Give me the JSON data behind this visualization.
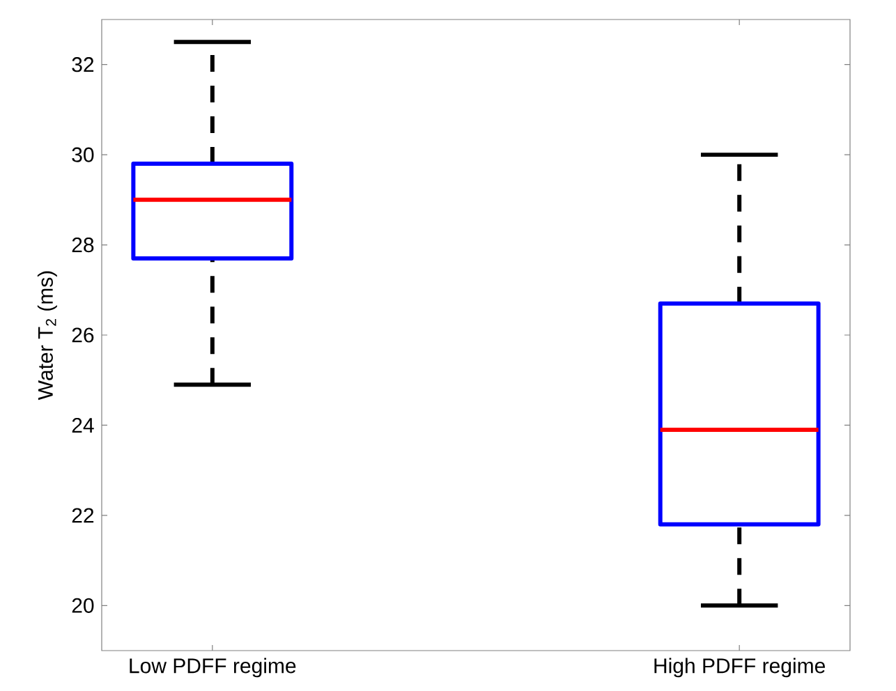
{
  "chart_data": {
    "type": "box",
    "ylabel": "Water T$_{2}$ (ms)",
    "categories": [
      "Low PDFF regime",
      "High PDFF regime"
    ],
    "series": [
      {
        "color": "#0000ff",
        "boxes": [
          {
            "low": 24.9,
            "q1": 27.7,
            "median": 29.0,
            "q3": 29.8,
            "high": 32.5
          },
          {
            "low": 20.0,
            "q1": 21.8,
            "median": 23.9,
            "q3": 26.7,
            "high": 30.0
          }
        ]
      }
    ],
    "ylim": [
      19,
      33
    ],
    "yticks": [
      20,
      22,
      24,
      26,
      28,
      30,
      32
    ],
    "grid": false
  }
}
